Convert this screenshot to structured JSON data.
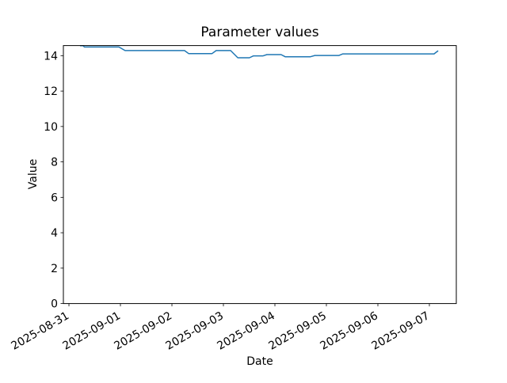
{
  "chart_data": {
    "type": "line",
    "title": "Parameter values",
    "xlabel": "Date",
    "ylabel": "Value",
    "x_epoch_date": "2025-08-31",
    "x_tick_labels": [
      "2025-08-31",
      "2025-09-01",
      "2025-09-02",
      "2025-09-03",
      "2025-09-04",
      "2025-09-05",
      "2025-09-06",
      "2025-09-07"
    ],
    "x_tick_days": [
      0,
      1,
      2,
      3,
      4,
      5,
      6,
      7
    ],
    "y_ticks": [
      0,
      2,
      4,
      6,
      8,
      10,
      12,
      14
    ],
    "xlim_days": [
      -0.108,
      7.523
    ],
    "ylim": [
      0,
      14.57
    ],
    "grid": false,
    "line_color": "#1f77b4",
    "axis_color": "#000000",
    "background_color": "#ffffff",
    "series": [
      {
        "name": "Parameter values",
        "points_t_days_value": [
          [
            0.215,
            14.56
          ],
          [
            0.277,
            14.56
          ],
          [
            0.3,
            14.49
          ],
          [
            0.97,
            14.49
          ],
          [
            1.09,
            14.29
          ],
          [
            2.245,
            14.29
          ],
          [
            2.325,
            14.12
          ],
          [
            2.78,
            14.12
          ],
          [
            2.86,
            14.29
          ],
          [
            3.14,
            14.29
          ],
          [
            3.28,
            13.88
          ],
          [
            3.505,
            13.88
          ],
          [
            3.585,
            13.99
          ],
          [
            3.77,
            13.99
          ],
          [
            3.845,
            14.06
          ],
          [
            4.12,
            14.06
          ],
          [
            4.2,
            13.94
          ],
          [
            4.69,
            13.94
          ],
          [
            4.775,
            14.01
          ],
          [
            5.245,
            14.01
          ],
          [
            5.32,
            14.1
          ],
          [
            7.09,
            14.1
          ],
          [
            7.17,
            14.28
          ]
        ]
      }
    ]
  }
}
